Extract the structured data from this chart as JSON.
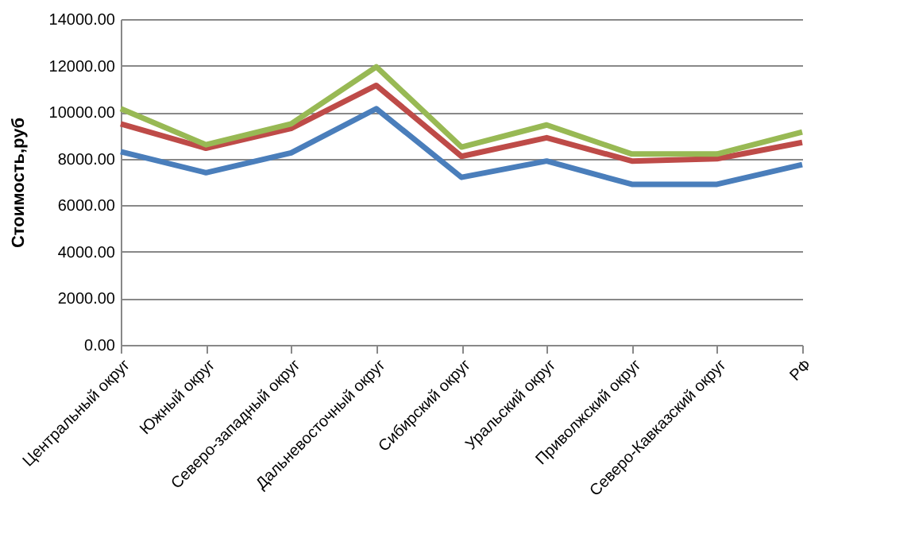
{
  "chart_data": {
    "type": "line",
    "ylabel": "Стоимость,руб",
    "categories": [
      "Центральный округ",
      "Южный округ",
      "Северо-западный округ",
      "Дальневосточный округ",
      "Сибирский округ",
      "Уральский округ",
      "Приволжский округ",
      "Северо-Кавказский округ",
      "РФ"
    ],
    "series": [
      {
        "color": "#4a7ebb",
        "values": [
          8300,
          7400,
          8250,
          10150,
          7200,
          7900,
          6900,
          6900,
          7750
        ]
      },
      {
        "color": "#be4b48",
        "values": [
          9500,
          8450,
          9300,
          11150,
          8100,
          8900,
          7900,
          8000,
          8700
        ]
      },
      {
        "color": "#98b954",
        "values": [
          10150,
          8600,
          9500,
          11950,
          8500,
          9450,
          8200,
          8200,
          9150
        ]
      }
    ],
    "ylim": [
      0,
      14000
    ],
    "yticks": [
      {
        "value": 0,
        "label": "0.00"
      },
      {
        "value": 2000,
        "label": "2000.00"
      },
      {
        "value": 4000,
        "label": "4000.00"
      },
      {
        "value": 6000,
        "label": "6000.00"
      },
      {
        "value": 8000,
        "label": "8000.00"
      },
      {
        "value": 10000,
        "label": "10000.00"
      },
      {
        "value": 12000,
        "label": "12000.00"
      },
      {
        "value": 14000,
        "label": "14000.00"
      }
    ],
    "grid": "y",
    "marker": "none",
    "line_style": "solid"
  }
}
